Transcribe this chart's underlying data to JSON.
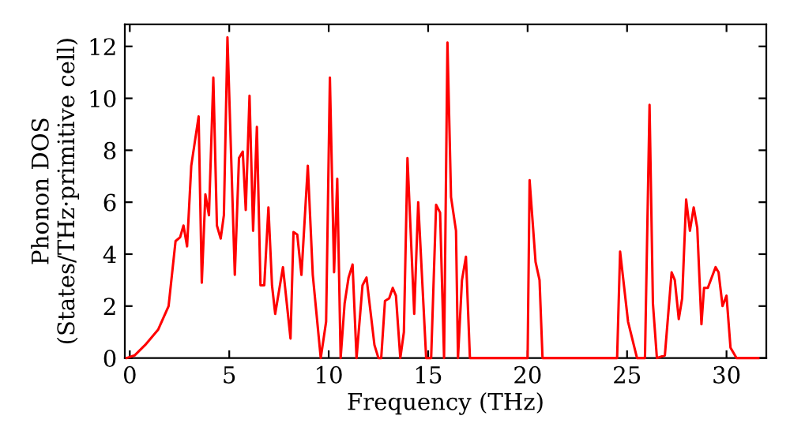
{
  "chart_data": {
    "type": "line",
    "xlabel": "Frequency (THz)",
    "ylabel": "Phonon DOS\n(States/THz·primitive cell)",
    "xlim": [
      -0.25,
      32
    ],
    "ylim": [
      0,
      12.85
    ],
    "xticks": [
      0,
      5,
      10,
      15,
      20,
      25,
      30
    ],
    "yticks": [
      0,
      2,
      4,
      6,
      8,
      10,
      12
    ],
    "grid": false,
    "series": [
      {
        "color": "#ff0000",
        "x": [
          -0.16,
          0.24,
          0.77,
          1.43,
          1.95,
          2.3,
          2.53,
          2.7,
          2.88,
          3.09,
          3.46,
          3.62,
          3.8,
          3.98,
          4.2,
          4.38,
          4.57,
          4.73,
          4.91,
          5.28,
          5.49,
          5.68,
          5.83,
          6.02,
          6.2,
          6.39,
          6.57,
          6.76,
          6.97,
          7.15,
          7.31,
          7.7,
          8.08,
          8.23,
          8.42,
          8.63,
          8.95,
          9.2,
          9.6,
          9.87,
          10.06,
          10.27,
          10.43,
          10.6,
          10.8,
          11.0,
          11.2,
          11.4,
          11.7,
          11.9,
          12.3,
          12.5,
          12.64,
          12.83,
          13.04,
          13.22,
          13.38,
          13.6,
          13.78,
          13.96,
          14.3,
          14.5,
          14.9,
          15.15,
          15.4,
          15.6,
          15.8,
          15.97,
          16.15,
          16.4,
          16.5,
          16.7,
          16.9,
          17.1,
          20.0,
          20.1,
          20.4,
          20.6,
          20.75,
          24.5,
          24.65,
          25.05,
          25.5,
          25.9,
          26.13,
          26.3,
          26.5,
          26.9,
          27.24,
          27.4,
          27.6,
          27.77,
          27.97,
          28.16,
          28.35,
          28.53,
          28.74,
          28.87,
          29.06,
          29.45,
          29.6,
          29.8,
          30.0,
          30.2,
          30.5,
          31.6
        ],
        "values": [
          0,
          0.1,
          0.5,
          1.1,
          2.0,
          4.5,
          4.65,
          5.1,
          4.3,
          7.4,
          9.3,
          2.9,
          6.3,
          5.5,
          10.8,
          5.1,
          4.6,
          5.5,
          12.35,
          3.2,
          7.7,
          7.95,
          5.7,
          10.1,
          4.9,
          8.9,
          2.8,
          2.8,
          5.8,
          2.8,
          1.7,
          3.5,
          0.75,
          4.85,
          4.75,
          3.2,
          7.4,
          3.2,
          0,
          1.4,
          10.8,
          3.3,
          6.9,
          0,
          2.1,
          3.1,
          3.6,
          0,
          2.8,
          3.1,
          0.5,
          0,
          0,
          2.2,
          2.3,
          2.7,
          2.4,
          0,
          1.0,
          7.7,
          1.7,
          6.0,
          0,
          0,
          5.9,
          5.6,
          0,
          12.15,
          6.2,
          4.9,
          0,
          3.0,
          3.9,
          0,
          0,
          6.85,
          3.7,
          3.0,
          0,
          0,
          4.1,
          1.4,
          0,
          0,
          9.75,
          2.1,
          0,
          0.1,
          3.3,
          3.0,
          1.5,
          2.3,
          6.1,
          4.9,
          5.8,
          5.0,
          1.3,
          2.7,
          2.7,
          3.5,
          3.3,
          2.0,
          2.4,
          0.4,
          0,
          0
        ]
      }
    ]
  }
}
